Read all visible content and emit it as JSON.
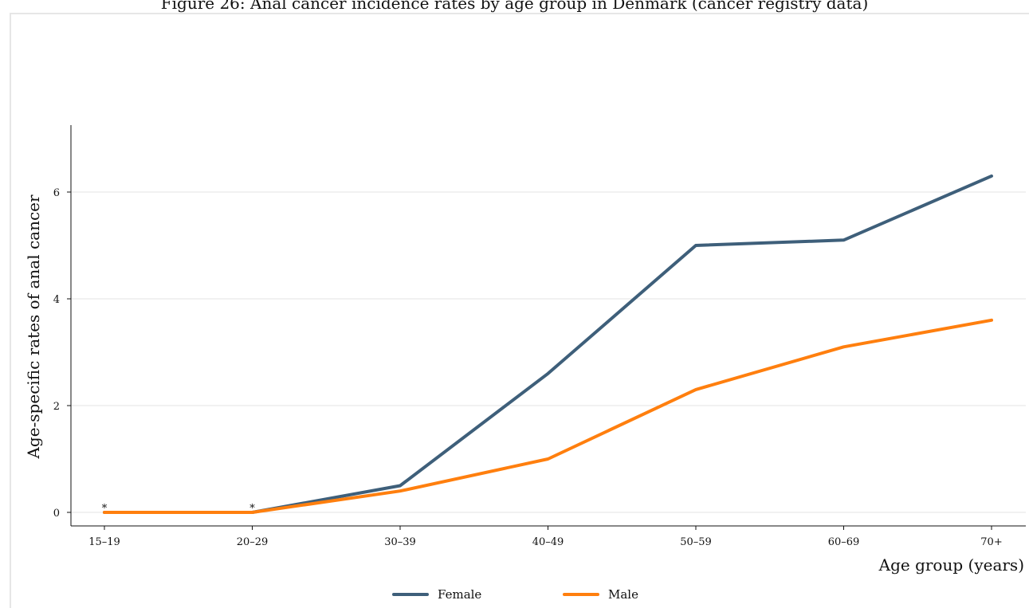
{
  "title": "Figure 26: Anal cancer incidence rates by age group in Denmark (cancer registry data)",
  "chart_data": {
    "type": "line",
    "title": "Figure 26: Anal cancer incidence rates by age group in Denmark (cancer registry data)",
    "xlabel": "Age group (years)",
    "ylabel": "Age-specific rates of anal cancer",
    "categories": [
      "15–19",
      "20–29",
      "30–39",
      "40–49",
      "50–59",
      "60–69",
      "70+"
    ],
    "ylim": [
      -0.25,
      7.2
    ],
    "yticks": [
      0,
      2,
      4,
      6
    ],
    "grid": true,
    "legend_position": "bottom",
    "series": [
      {
        "name": "Female",
        "color": "#3e5f7a",
        "values": [
          0,
          0,
          0.5,
          2.6,
          5.0,
          5.1,
          6.3
        ]
      },
      {
        "name": "Male",
        "color": "#ff7f0e",
        "values": [
          0,
          0,
          0.4,
          1.0,
          2.3,
          3.1,
          3.6
        ]
      }
    ],
    "annotations": [
      {
        "category": "15–19",
        "text": "*"
      },
      {
        "category": "20–29",
        "text": "*"
      }
    ]
  }
}
